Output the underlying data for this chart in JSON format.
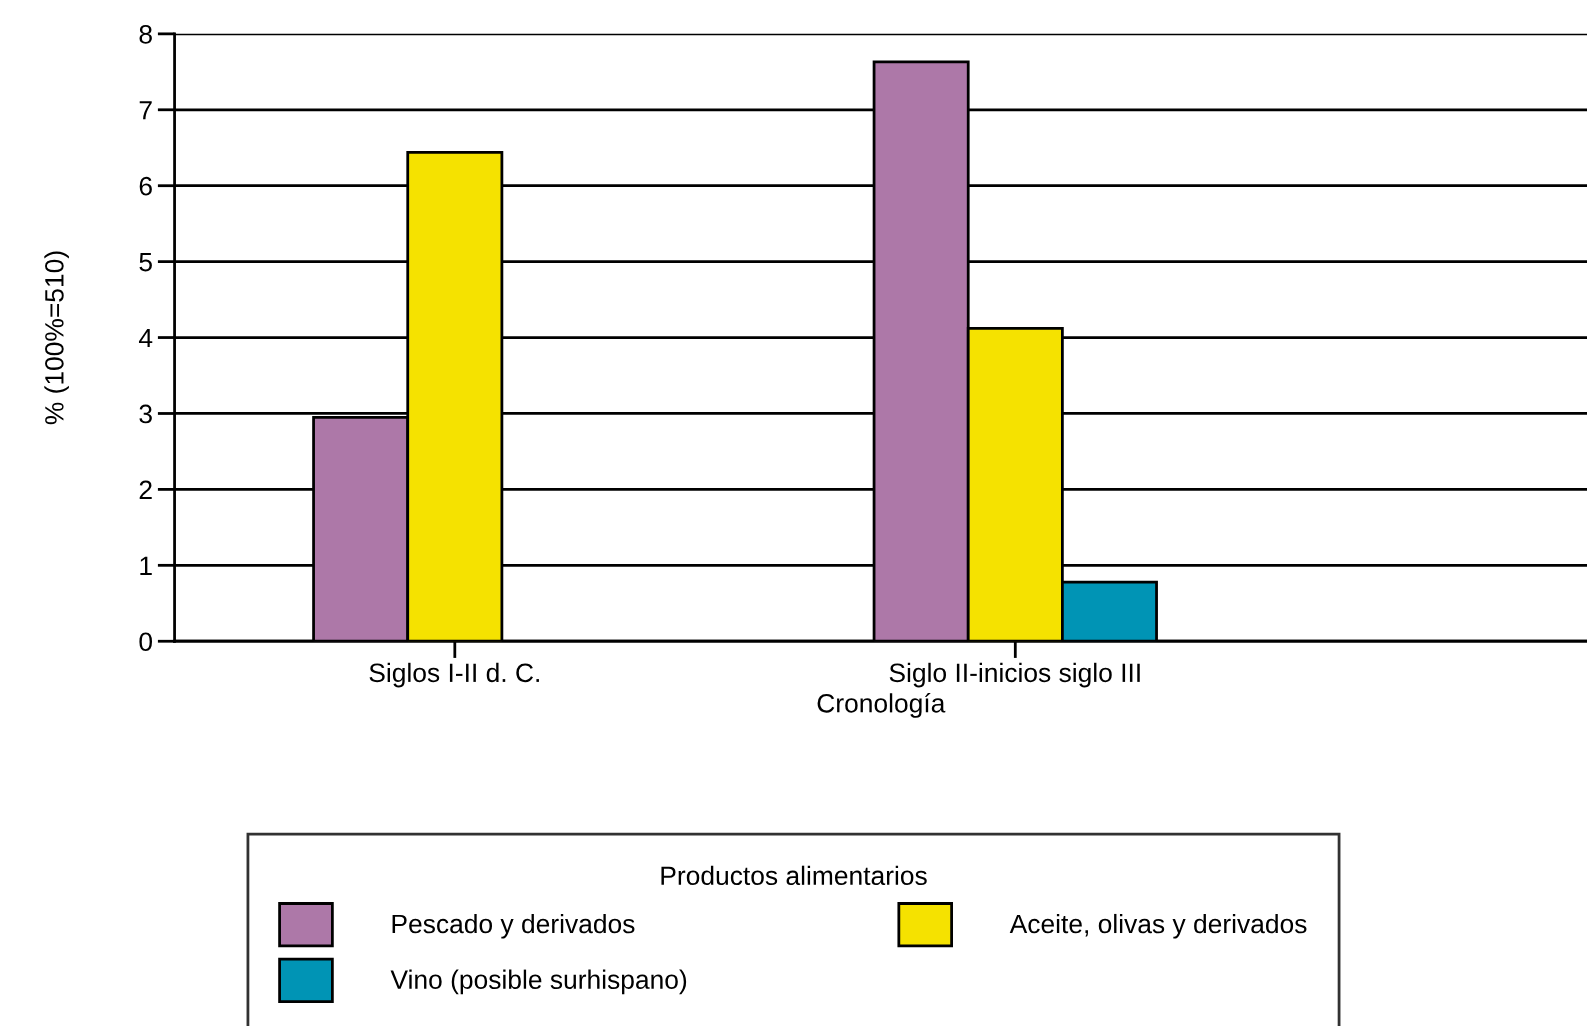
{
  "chart_data": {
    "type": "bar",
    "xlabel": "Cronología",
    "ylabel": "% (100%=510)",
    "legend_title": "Productos alimentarios",
    "categories": [
      "Siglos I-II d. C.",
      "Siglo II-inicios siglo III"
    ],
    "series": [
      {
        "name": "Pescado y derivados",
        "color": "#ad78a8",
        "values": [
          2.95,
          7.63
        ]
      },
      {
        "name": "Aceite, olivas y derivados",
        "color": "#f5e200",
        "values": [
          6.44,
          4.12
        ]
      },
      {
        "name": "Vino (posible surhispano)",
        "color": "#0094b5",
        "values": [
          null,
          0.78
        ]
      }
    ],
    "ylim": [
      0,
      8
    ],
    "yticks": [
      0,
      1,
      2,
      3,
      4,
      5,
      6,
      7,
      8
    ],
    "grid": "y",
    "legend": "bottom"
  }
}
